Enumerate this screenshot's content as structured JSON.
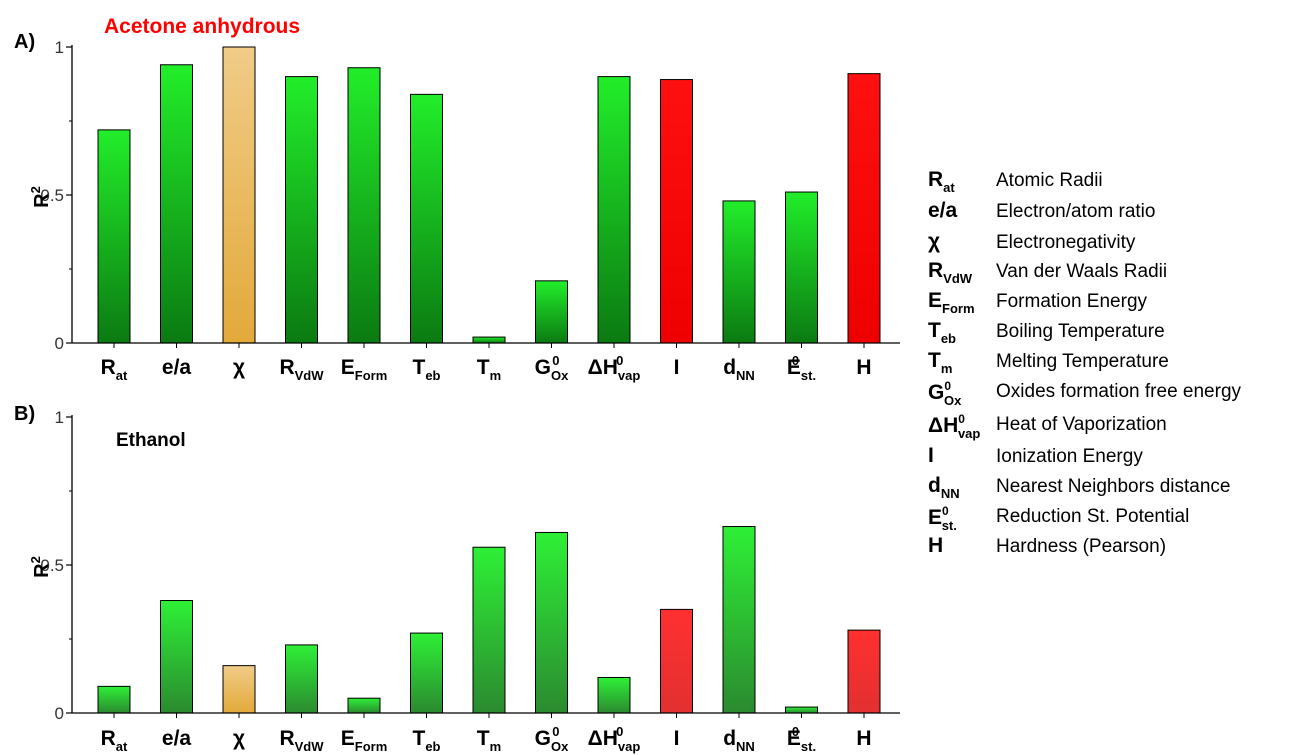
{
  "panels": [
    {
      "label": "A)",
      "title": "Acetone anhydrous",
      "title_color": "#ff0000"
    },
    {
      "label": "B)",
      "title": "Ethanol",
      "title_color": "#000000"
    }
  ],
  "chart_data": [
    {
      "type": "bar",
      "title": "Acetone anhydrous",
      "ylabel": "R2",
      "ylim": [
        0,
        1
      ],
      "yticks": [
        "0",
        "0.5",
        "1"
      ],
      "categories": [
        "Rat",
        "e/a",
        "χ",
        "RVdW",
        "EForm",
        "Teb",
        "Tm",
        "G0Ox",
        "ΔH0vap",
        "I",
        "dNN",
        "E0st.",
        "H"
      ],
      "values": [
        0.72,
        0.94,
        1.0,
        0.9,
        0.93,
        0.84,
        0.02,
        0.21,
        0.9,
        0.89,
        0.48,
        0.51,
        0.91
      ],
      "colors": [
        "green",
        "green",
        "orange",
        "green",
        "green",
        "green",
        "green",
        "green",
        "green",
        "red",
        "green",
        "green",
        "red"
      ]
    },
    {
      "type": "bar",
      "title": "Ethanol",
      "ylabel": "R2",
      "ylim": [
        0,
        1
      ],
      "yticks": [
        "0",
        "0.5",
        "1"
      ],
      "categories": [
        "Rat",
        "e/a",
        "χ",
        "RVdW",
        "EForm",
        "Teb",
        "Tm",
        "G0Ox",
        "ΔH0vap",
        "I",
        "dNN",
        "E0st.",
        "H"
      ],
      "values": [
        0.09,
        0.38,
        0.16,
        0.23,
        0.05,
        0.27,
        0.56,
        0.61,
        0.12,
        0.35,
        0.63,
        0.02,
        0.28
      ],
      "colors": [
        "green",
        "green",
        "orange",
        "green",
        "green",
        "green",
        "green",
        "green",
        "green",
        "red",
        "green",
        "green",
        "red"
      ]
    }
  ],
  "category_labels": [
    {
      "main": "R",
      "sub": "at",
      "sup": ""
    },
    {
      "main": "e/a",
      "sub": "",
      "sup": ""
    },
    {
      "main": "χ",
      "sub": "",
      "sup": ""
    },
    {
      "main": "R",
      "sub": "VdW",
      "sup": ""
    },
    {
      "main": "E",
      "sub": "Form",
      "sup": ""
    },
    {
      "main": "T",
      "sub": "eb",
      "sup": ""
    },
    {
      "main": "T",
      "sub": "m",
      "sup": ""
    },
    {
      "main": "G",
      "sub": "Ox",
      "sup": "0"
    },
    {
      "main": "ΔH",
      "sub": "vap",
      "sup": "0"
    },
    {
      "main": "I",
      "sub": "",
      "sup": ""
    },
    {
      "main": "d",
      "sub": "NN",
      "sup": ""
    },
    {
      "main": "E",
      "sub": "st.",
      "sup": "0"
    },
    {
      "main": "H",
      "sub": "",
      "sup": ""
    }
  ],
  "legend": [
    {
      "main": "R",
      "sub": "at",
      "sup": "",
      "desc": "Atomic Radii"
    },
    {
      "main": "e/a",
      "sub": "",
      "sup": "",
      "desc": "Electron/atom ratio"
    },
    {
      "main": "χ",
      "sub": "",
      "sup": "",
      "desc": "Electronegativity"
    },
    {
      "main": "R",
      "sub": "VdW",
      "sup": "",
      "desc": "Van der Waals Radii"
    },
    {
      "main": "E",
      "sub": "Form",
      "sup": "",
      "desc": "Formation Energy"
    },
    {
      "main": "T",
      "sub": "eb",
      "sup": "",
      "desc": "Boiling Temperature"
    },
    {
      "main": "T",
      "sub": "m",
      "sup": "",
      "desc": "Melting Temperature"
    },
    {
      "main": "G",
      "sub": "Ox",
      "sup": "0",
      "desc": "Oxides formation free energy"
    },
    {
      "main": "ΔH",
      "sub": "vap",
      "sup": "0",
      "desc": "Heat of Vaporization"
    },
    {
      "main": "I",
      "sub": "",
      "sup": "",
      "desc": "Ionization Energy"
    },
    {
      "main": "d",
      "sub": "NN",
      "sup": "",
      "desc": "Nearest Neighbors distance"
    },
    {
      "main": "E",
      "sub": "st.",
      "sup": "0",
      "desc": "Reduction St. Potential"
    },
    {
      "main": "H",
      "sub": "",
      "sup": "",
      "desc": "Hardness (Pearson)"
    }
  ],
  "palette": {
    "green_top": "#22ee2a",
    "green_bottom": "#0b7a12",
    "green_top_b": "#2ef036",
    "green_bottom_b": "#2b8a30",
    "orange_top": "#f0cc88",
    "orange_bottom": "#e3a93a",
    "red_top": "#ff1010",
    "red_bottom": "#ee0000",
    "red_top_b": "#ff3030",
    "red_bottom_b": "#e23030"
  }
}
